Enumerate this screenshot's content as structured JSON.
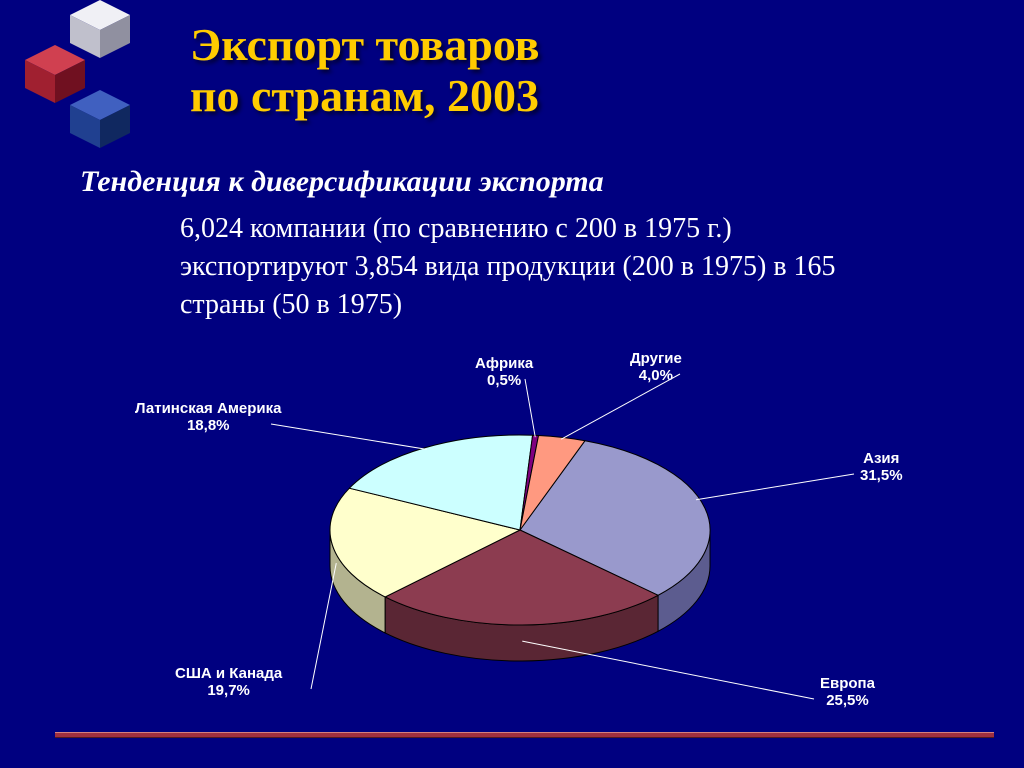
{
  "title_line1": "Экспорт товаров",
  "title_line2": "по странам, 2003",
  "title_color": "#ffcc00",
  "title_fontsize": 46,
  "subtitle": "Тенденция к диверсификации экспорта",
  "subtitle_fontsize": 30,
  "body_text": "6,024 компании (по сравнению с 200 в 1975 г.) экспортируют 3,854 вида продукции (200 в 1975) в 165 страны (50 в 1975)",
  "body_fontsize": 28,
  "background_color": "#000080",
  "footer_bar_color": "#a03040",
  "chart": {
    "type": "pie-3d",
    "label_fontsize": 15,
    "label_color": "#ffffff",
    "stroke_color": "#000000",
    "stroke_width": 1,
    "slices": [
      {
        "label_line1": "Азия",
        "label_line2": "31,5%",
        "value": 31.5,
        "fill": "#9999cc",
        "side": "#5c5c8f"
      },
      {
        "label_line1": "Европа",
        "label_line2": "25,5%",
        "value": 25.5,
        "fill": "#8c3c50",
        "side": "#5a2634"
      },
      {
        "label_line1": "США и Канада",
        "label_line2": "19,7%",
        "value": 19.7,
        "fill": "#ffffcc",
        "side": "#b3b38f"
      },
      {
        "label_line1": "Латинская Америка",
        "label_line2": "18,8%",
        "value": 18.8,
        "fill": "#ccffff",
        "side": "#8fb3b3"
      },
      {
        "label_line1": "Африка",
        "label_line2": "0,5%",
        "value": 0.5,
        "fill": "#800080",
        "side": "#4d004d"
      },
      {
        "label_line1": "Другие",
        "label_line2": "4,0%",
        "value": 4.0,
        "fill": "#ff9980",
        "side": "#b36b59"
      }
    ]
  },
  "decor_cubes": [
    {
      "color1": "#f0f0f5",
      "color2": "#c0c0cc",
      "color3": "#9090a0"
    },
    {
      "color1": "#d04050",
      "color2": "#a02030",
      "color3": "#701020"
    },
    {
      "color1": "#4060c0",
      "color2": "#204090",
      "color3": "#102860"
    }
  ]
}
